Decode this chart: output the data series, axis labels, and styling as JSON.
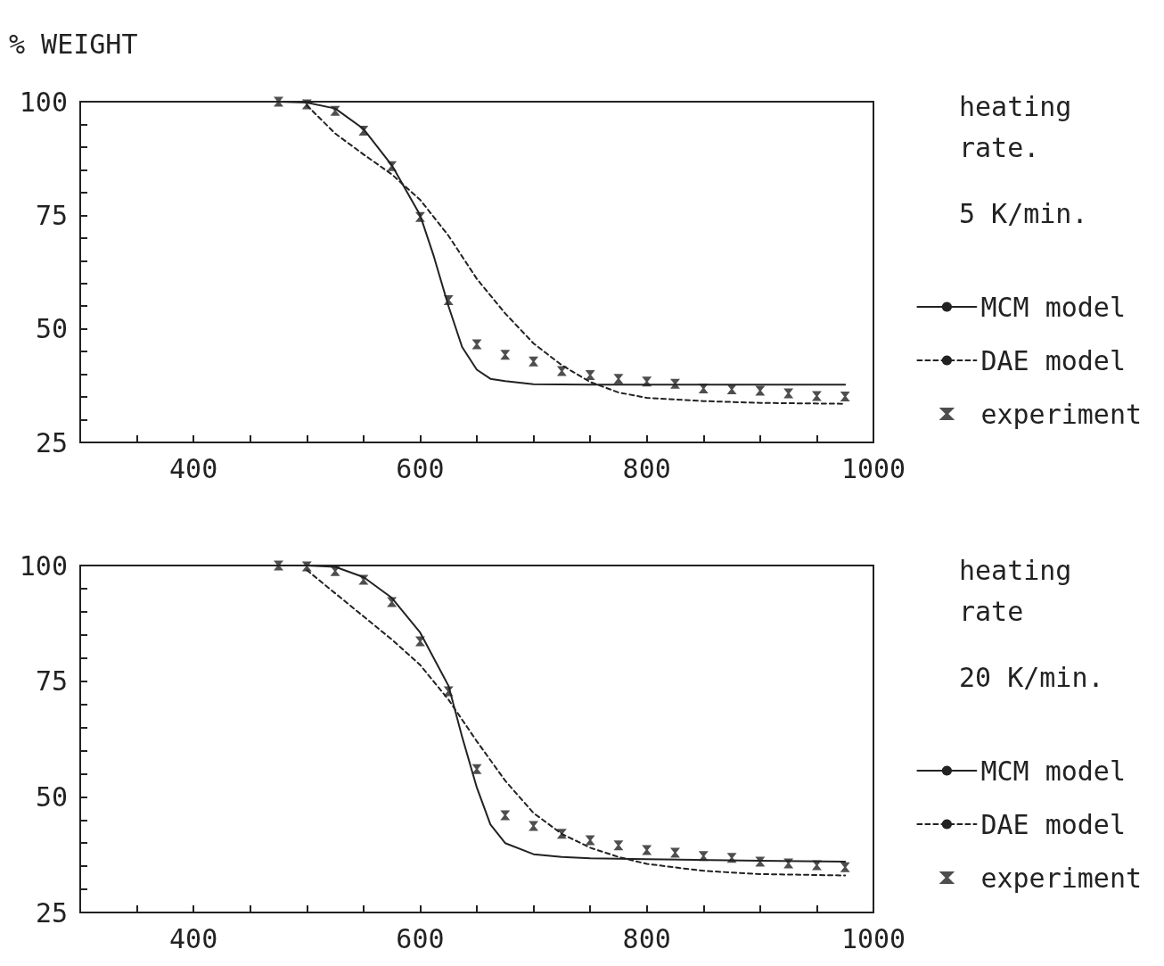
{
  "chart_data": [
    {
      "type": "line",
      "ylabel": "% WEIGHT",
      "annotations": [
        "heating rate.",
        "5 K/min."
      ],
      "xlim": [
        300,
        1000
      ],
      "ylim": [
        25,
        100
      ],
      "xticks": [
        {
          "value": 350,
          "label": null
        },
        400,
        {
          "value": 450,
          "label": null
        },
        {
          "value": 500,
          "label": null
        },
        {
          "value": 550,
          "label": null
        },
        600,
        {
          "value": 650,
          "label": null
        },
        {
          "value": 700,
          "label": null
        },
        {
          "value": 750,
          "label": null
        },
        800,
        {
          "value": 850,
          "label": null
        },
        {
          "value": 900,
          "label": null
        },
        {
          "value": 950,
          "label": null
        },
        1000
      ],
      "yticks": [
        25,
        {
          "value": 30,
          "label": null
        },
        {
          "value": 35,
          "label": null
        },
        {
          "value": 40,
          "label": null
        },
        {
          "value": 45,
          "label": null
        },
        50,
        {
          "value": 55,
          "label": null
        },
        {
          "value": 60,
          "label": null
        },
        {
          "value": 65,
          "label": null
        },
        {
          "value": 70,
          "label": null
        },
        75,
        {
          "value": 80,
          "label": null
        },
        {
          "value": 85,
          "label": null
        },
        {
          "value": 90,
          "label": null
        },
        {
          "value": 95,
          "label": null
        },
        100
      ],
      "legend": "right",
      "series": [
        {
          "name": "MCM model",
          "color": "#222222",
          "marker": "none",
          "line_style": "solid",
          "x": [
            475,
            500,
            525,
            550,
            575,
            600,
            612,
            625,
            637,
            650,
            662,
            675,
            700,
            750,
            800,
            900,
            975
          ],
          "values": [
            100,
            99.8,
            98.5,
            94,
            86,
            75,
            66,
            55,
            46,
            41,
            39,
            38.5,
            37.8,
            37.7,
            37.7,
            37.7,
            37.7
          ]
        },
        {
          "name": "DAE model",
          "color": "#222222",
          "marker": "none",
          "line_style": "dashed",
          "x": [
            500,
            525,
            550,
            575,
            600,
            625,
            650,
            675,
            700,
            725,
            750,
            775,
            800,
            850,
            900,
            975
          ],
          "values": [
            99.2,
            93,
            88.4,
            84,
            78.4,
            70.5,
            61,
            53.4,
            46.8,
            42,
            38.3,
            36,
            34.8,
            34.1,
            33.7,
            33.5
          ]
        },
        {
          "name": "experiment",
          "type": "scatter",
          "color": "#222222",
          "marker": "cross",
          "x": [
            475,
            500,
            525,
            550,
            575,
            600,
            625,
            650,
            675,
            700,
            725,
            750,
            775,
            800,
            825,
            850,
            875,
            900,
            925,
            950,
            975
          ],
          "values": [
            100,
            99.4,
            98,
            93.6,
            85.8,
            74.6,
            56.3,
            46.6,
            44.3,
            42.8,
            40.7,
            39.8,
            39,
            38.4,
            37.9,
            36.9,
            36.7,
            36.4,
            35.8,
            35.2,
            35.1
          ]
        }
      ]
    },
    {
      "type": "line",
      "annotations": [
        "heating rate",
        "20 K/min."
      ],
      "xlim": [
        300,
        1000
      ],
      "ylim": [
        25,
        100
      ],
      "xticks": [
        {
          "value": 350,
          "label": null
        },
        400,
        {
          "value": 450,
          "label": null
        },
        {
          "value": 500,
          "label": null
        },
        {
          "value": 550,
          "label": null
        },
        600,
        {
          "value": 650,
          "label": null
        },
        {
          "value": 700,
          "label": null
        },
        {
          "value": 750,
          "label": null
        },
        800,
        {
          "value": 850,
          "label": null
        },
        {
          "value": 900,
          "label": null
        },
        {
          "value": 950,
          "label": null
        },
        1000
      ],
      "yticks": [
        25,
        {
          "value": 30,
          "label": null
        },
        {
          "value": 35,
          "label": null
        },
        {
          "value": 40,
          "label": null
        },
        {
          "value": 45,
          "label": null
        },
        50,
        {
          "value": 55,
          "label": null
        },
        {
          "value": 60,
          "label": null
        },
        {
          "value": 65,
          "label": null
        },
        {
          "value": 70,
          "label": null
        },
        75,
        {
          "value": 80,
          "label": null
        },
        {
          "value": 85,
          "label": null
        },
        {
          "value": 90,
          "label": null
        },
        {
          "value": 95,
          "label": null
        },
        100
      ],
      "legend": "right",
      "series": [
        {
          "name": "MCM model",
          "color": "#222222",
          "marker": "none",
          "line_style": "solid",
          "x": [
            475,
            500,
            525,
            550,
            575,
            600,
            625,
            637,
            650,
            662,
            675,
            700,
            725,
            750,
            800,
            900,
            975
          ],
          "values": [
            100,
            100,
            99.7,
            97.5,
            93,
            85.5,
            74,
            63,
            52,
            44,
            40,
            37.6,
            37,
            36.7,
            36.5,
            36.2,
            36
          ]
        },
        {
          "name": "DAE model",
          "color": "#222222",
          "marker": "none",
          "line_style": "dashed",
          "x": [
            500,
            525,
            550,
            575,
            600,
            625,
            650,
            675,
            700,
            725,
            750,
            775,
            800,
            850,
            900,
            975
          ],
          "values": [
            99,
            94,
            89,
            84,
            78.5,
            71,
            62,
            53.5,
            46.5,
            42,
            39,
            37,
            35.5,
            34,
            33.3,
            33
          ]
        },
        {
          "name": "experiment",
          "type": "scatter",
          "color": "#222222",
          "marker": "cross",
          "x": [
            475,
            500,
            525,
            550,
            575,
            600,
            625,
            650,
            675,
            700,
            725,
            750,
            775,
            800,
            825,
            850,
            875,
            900,
            925,
            950,
            975
          ],
          "values": [
            100,
            99.8,
            98.8,
            96.9,
            92.1,
            83.6,
            72.8,
            56,
            46,
            43.7,
            42,
            40.6,
            39.5,
            38.5,
            37.9,
            37.2,
            36.8,
            36,
            35.6,
            35.2,
            34.8
          ]
        }
      ]
    }
  ]
}
